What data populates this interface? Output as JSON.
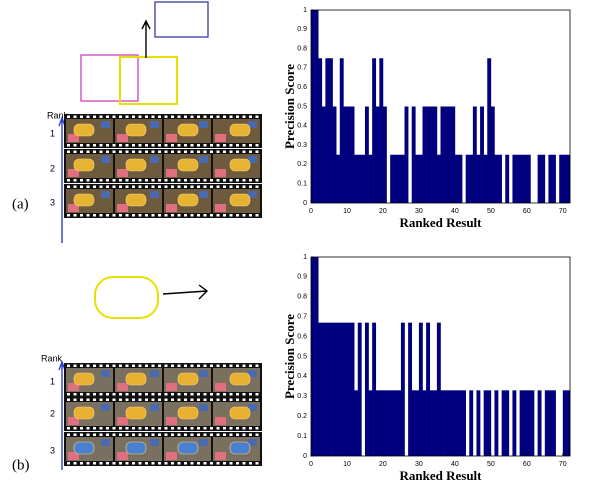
{
  "chart_data": [
    {
      "type": "bar",
      "x_label": "Ranked Result",
      "y_label": "Precision Score",
      "color": "#00007f",
      "xlim": [
        0,
        72
      ],
      "xticks": [
        0,
        10,
        20,
        30,
        40,
        50,
        60,
        70
      ],
      "ylim": [
        0,
        1
      ],
      "yticks": [
        0,
        0.1,
        0.2,
        0.3,
        0.4,
        0.5,
        0.6,
        0.7,
        0.8,
        0.9,
        1
      ],
      "x": [
        1,
        2,
        3,
        4,
        5,
        6,
        7,
        8,
        9,
        10,
        11,
        12,
        13,
        14,
        15,
        16,
        17,
        18,
        19,
        20,
        21,
        22,
        23,
        24,
        25,
        26,
        27,
        28,
        29,
        30,
        31,
        32,
        33,
        34,
        35,
        36,
        37,
        38,
        39,
        40,
        41,
        42,
        43,
        44,
        45,
        46,
        47,
        48,
        49,
        50,
        51,
        52,
        53,
        54,
        55,
        56,
        57,
        58,
        59,
        60,
        61,
        62,
        63,
        64,
        65,
        66,
        67,
        68,
        69,
        70,
        71,
        72
      ],
      "values": [
        1,
        1,
        0.75,
        0.5,
        0.75,
        0.75,
        0.5,
        0.25,
        0.75,
        0.5,
        0.5,
        0.5,
        0.25,
        0.25,
        0.25,
        0.5,
        0.25,
        0.75,
        0.5,
        0.75,
        0.5,
        0,
        0.25,
        0.25,
        0.25,
        0.25,
        0.5,
        0,
        0.5,
        0.25,
        0.25,
        0.5,
        0.5,
        0.5,
        0.5,
        0.25,
        0.5,
        0.5,
        0.5,
        0.5,
        0.25,
        0.25,
        0,
        0.25,
        0.25,
        0.5,
        0.25,
        0.5,
        0.25,
        0.75,
        0.5,
        0.25,
        0.25,
        0,
        0.25,
        0,
        0.25,
        0.25,
        0.25,
        0.25,
        0.25,
        0,
        0,
        0.25,
        0.25,
        0,
        0.25,
        0.25,
        0,
        0.25,
        0.25,
        0.25
      ]
    },
    {
      "type": "bar",
      "x_label": "Ranked Result",
      "y_label": "Precision Score",
      "color": "#00007f",
      "xlim": [
        0,
        72
      ],
      "xticks": [
        0,
        10,
        20,
        30,
        40,
        50,
        60,
        70
      ],
      "ylim": [
        0,
        1
      ],
      "yticks": [
        0,
        0.1,
        0.2,
        0.3,
        0.4,
        0.5,
        0.6,
        0.7,
        0.8,
        0.9,
        1
      ],
      "x": [
        1,
        2,
        3,
        4,
        5,
        6,
        7,
        8,
        9,
        10,
        11,
        12,
        13,
        14,
        15,
        16,
        17,
        18,
        19,
        20,
        21,
        22,
        23,
        24,
        25,
        26,
        27,
        28,
        29,
        30,
        31,
        32,
        33,
        34,
        35,
        36,
        37,
        38,
        39,
        40,
        41,
        42,
        43,
        44,
        45,
        46,
        47,
        48,
        49,
        50,
        51,
        52,
        53,
        54,
        55,
        56,
        57,
        58,
        59,
        60,
        61,
        62,
        63,
        64,
        65,
        66,
        67,
        68,
        69,
        70,
        71,
        72
      ],
      "values": [
        1,
        1,
        0.67,
        0.67,
        0.67,
        0.67,
        0.67,
        0.67,
        0.67,
        0.67,
        0.67,
        0.67,
        0.33,
        0.67,
        0,
        0.67,
        0.33,
        0.67,
        0.33,
        0.33,
        0.33,
        0.33,
        0.33,
        0.33,
        0.33,
        0.67,
        0,
        0.67,
        0.33,
        0.33,
        0.67,
        0.33,
        0.67,
        0.33,
        0.33,
        0.67,
        0.33,
        0.33,
        0.33,
        0.33,
        0.33,
        0.33,
        0.33,
        0,
        0.33,
        0,
        0.33,
        0,
        0.33,
        0.33,
        0,
        0.33,
        0,
        0.33,
        0.33,
        0,
        0.33,
        0,
        0.33,
        0.33,
        0.33,
        0.33,
        0,
        0.33,
        0,
        0.33,
        0.33,
        0.33,
        0,
        0,
        0.33,
        0.33
      ]
    }
  ],
  "panels": [
    {
      "label": "(a)",
      "rank_title": "Rank",
      "ranks": [
        "1",
        "2",
        "3"
      ]
    },
    {
      "label": "(b)",
      "rank_title": "Rank",
      "ranks": [
        "1",
        "2",
        "3"
      ]
    }
  ]
}
